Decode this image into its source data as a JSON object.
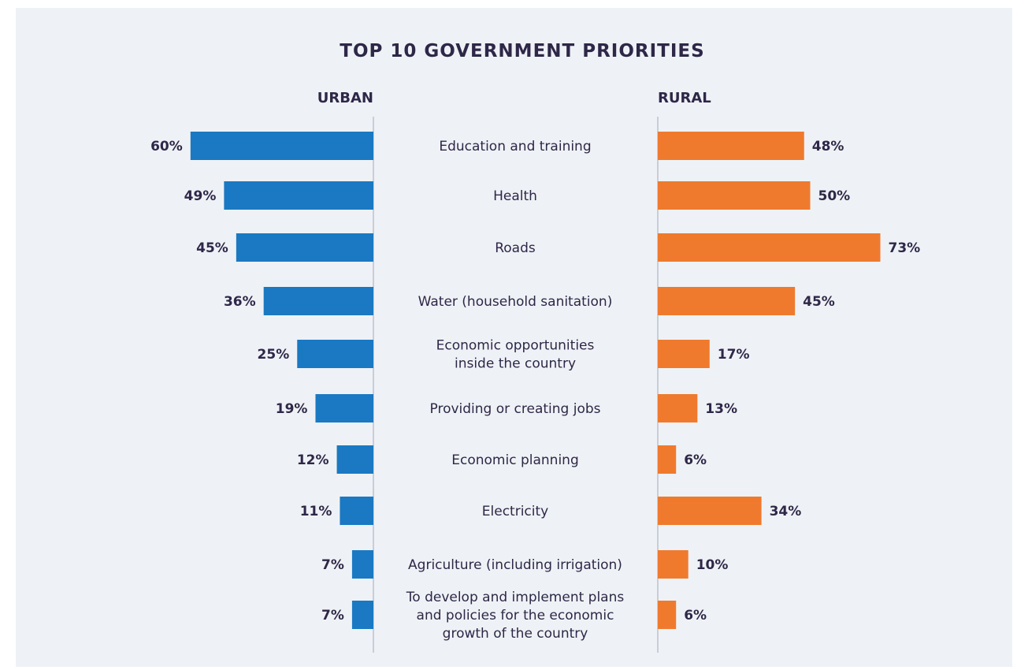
{
  "chart_data": {
    "type": "bar",
    "orientation": "horizontal-diverging",
    "title": "TOP 10 GOVERNMENT PRIORITIES",
    "categories": [
      [
        "Education and training"
      ],
      [
        "Health"
      ],
      [
        "Roads"
      ],
      [
        "Water (household sanitation)"
      ],
      [
        "Economic opportunities",
        "inside the country"
      ],
      [
        "Providing or creating jobs"
      ],
      [
        "Economic planning"
      ],
      [
        "Electricity"
      ],
      [
        "Agriculture (including irrigation)"
      ],
      [
        "To develop and implement plans",
        "and policies for the economic",
        "growth of the country"
      ]
    ],
    "series": [
      {
        "name": "URBAN",
        "color": "#1a79c2",
        "values": [
          60,
          49,
          45,
          36,
          25,
          19,
          12,
          11,
          7,
          7
        ],
        "labels": [
          "60%",
          "49%",
          "45%",
          "36%",
          "25%",
          "19%",
          "12%",
          "11%",
          "7%",
          "7%"
        ]
      },
      {
        "name": "RURAL",
        "color": "#ef7a2e",
        "values": [
          48,
          50,
          73,
          45,
          17,
          13,
          6,
          34,
          10,
          6
        ],
        "labels": [
          "48%",
          "50%",
          "73%",
          "45%",
          "17%",
          "13%",
          "6%",
          "34%",
          "10%",
          "6%"
        ]
      }
    ],
    "unit": "%",
    "divider_color": "#c9ced6"
  }
}
